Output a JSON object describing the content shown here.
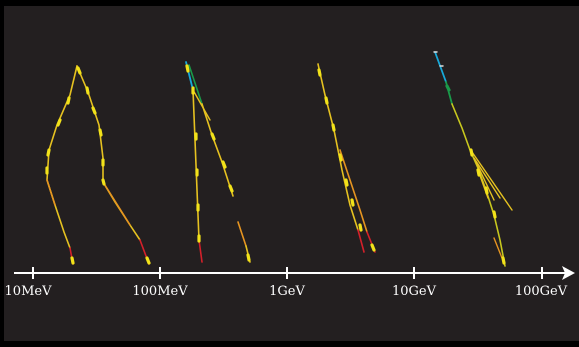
{
  "colors": {
    "background": "#000000",
    "panel": "#231f20",
    "axis": "#ffffff",
    "yellow": "#f2e21a",
    "olive": "#c8c81e",
    "orange": "#e69520",
    "red": "#d4202a",
    "cyan": "#17a8d8",
    "green": "#1a9a4a"
  },
  "axis": {
    "ticks": [
      {
        "label": "10MeV"
      },
      {
        "label": "100MeV"
      },
      {
        "label": "1GeV"
      },
      {
        "label": "10GeV"
      },
      {
        "label": "100GeV"
      }
    ]
  },
  "showers": [
    {
      "name": "shower-10mev-100mev"
    },
    {
      "name": "shower-100mev-1gev"
    },
    {
      "name": "shower-1gev-10gev"
    },
    {
      "name": "shower-10gev-100gev"
    }
  ]
}
